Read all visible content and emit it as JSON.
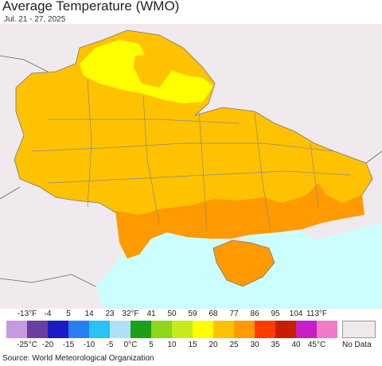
{
  "header": {
    "title": "Average Temperature (WMO)",
    "date_range": "Jul. 21 - 27, 2025"
  },
  "map": {
    "water_color": "#ccfdff",
    "background_land_color": "#f0eaee",
    "temperature_classes_shown": [
      "25-30°C (orange)",
      "20-25°C (amber)",
      "15-20°C (yellow)"
    ]
  },
  "legend": {
    "fahrenheit_ticks": [
      "-13°F",
      "-4",
      "5",
      "14",
      "23",
      "32°F",
      "41",
      "50",
      "59",
      "68",
      "77",
      "86",
      "95",
      "104",
      "113°F"
    ],
    "celsius_ticks": [
      "-25°C",
      "-20",
      "-15",
      "-10",
      "-5",
      "0°C",
      "5",
      "10",
      "15",
      "20",
      "25",
      "30",
      "35",
      "40",
      "45°C"
    ],
    "colors": [
      "#c49be0",
      "#6b3fa0",
      "#1b1bc8",
      "#2a7ef0",
      "#29c3f5",
      "#b0e0f5",
      "#1aa01a",
      "#8fd61a",
      "#c8ea1a",
      "#ffff00",
      "#ffc200",
      "#ff9a00",
      "#ff3c00",
      "#c81e00",
      "#c81ec8",
      "#f07ac8"
    ],
    "no_data_label": "No Data"
  },
  "footer": {
    "source": "Source: World Meteorological Organization"
  }
}
